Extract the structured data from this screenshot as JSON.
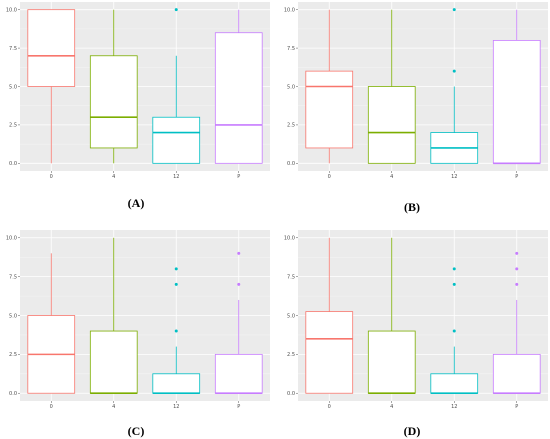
{
  "colors": {
    "panel_bg": "#ebebeb",
    "grid_major": "#ffffff",
    "grid_minor": "#f5f5f5",
    "box_fill": "#ffffff",
    "series": [
      "#f8766d",
      "#7cae00",
      "#00bfc4",
      "#c77cff"
    ]
  },
  "panel_labels": [
    "(A)",
    "(B)",
    "(C)",
    "(D)"
  ],
  "chart_data": [
    {
      "type": "box",
      "panel": "(A)",
      "categories": [
        "0",
        "4",
        "12",
        "P"
      ],
      "ylim": [
        -0.5,
        10.5
      ],
      "y_ticks": [
        "0.0",
        "2.5",
        "5.0",
        "7.5",
        "10.0"
      ],
      "y_tick_values": [
        0,
        2.5,
        5,
        7.5,
        10
      ],
      "boxes": [
        {
          "category": "0",
          "whisker_low": 0,
          "q1": 5,
          "median": 7,
          "q3": 10,
          "whisker_high": 10,
          "outliers": []
        },
        {
          "category": "4",
          "whisker_low": 0,
          "q1": 1,
          "median": 3,
          "q3": 7,
          "whisker_high": 10,
          "outliers": []
        },
        {
          "category": "12",
          "whisker_low": 0,
          "q1": 0,
          "median": 2,
          "q3": 3,
          "whisker_high": 7,
          "outliers": [
            10
          ]
        },
        {
          "category": "P",
          "whisker_low": 0,
          "q1": 0,
          "median": 2.5,
          "q3": 8.5,
          "whisker_high": 10,
          "outliers": []
        }
      ]
    },
    {
      "type": "box",
      "panel": "(B)",
      "categories": [
        "0",
        "4",
        "12",
        "P"
      ],
      "ylim": [
        -0.5,
        10.5
      ],
      "y_ticks": [
        "0.0",
        "2.5",
        "5.0",
        "7.5",
        "10.0"
      ],
      "y_tick_values": [
        0,
        2.5,
        5,
        7.5,
        10
      ],
      "boxes": [
        {
          "category": "0",
          "whisker_low": 0,
          "q1": 1,
          "median": 5,
          "q3": 6,
          "whisker_high": 10,
          "outliers": []
        },
        {
          "category": "4",
          "whisker_low": 0,
          "q1": 0,
          "median": 2,
          "q3": 5,
          "whisker_high": 10,
          "outliers": []
        },
        {
          "category": "12",
          "whisker_low": 0,
          "q1": 0,
          "median": 1,
          "q3": 2,
          "whisker_high": 5,
          "outliers": [
            6,
            10
          ]
        },
        {
          "category": "P",
          "whisker_low": 0,
          "q1": 0,
          "median": 0,
          "q3": 8,
          "whisker_high": 10,
          "outliers": []
        }
      ]
    },
    {
      "type": "box",
      "panel": "(C)",
      "categories": [
        "0",
        "4",
        "12",
        "P"
      ],
      "ylim": [
        -0.5,
        10.5
      ],
      "y_ticks": [
        "0.0",
        "2.5",
        "5.0",
        "7.5",
        "10.0"
      ],
      "y_tick_values": [
        0,
        2.5,
        5,
        7.5,
        10
      ],
      "boxes": [
        {
          "category": "0",
          "whisker_low": 0,
          "q1": 0,
          "median": 2.5,
          "q3": 5,
          "whisker_high": 9,
          "outliers": []
        },
        {
          "category": "4",
          "whisker_low": 0,
          "q1": 0,
          "median": 0,
          "q3": 4,
          "whisker_high": 10,
          "outliers": []
        },
        {
          "category": "12",
          "whisker_low": 0,
          "q1": 0,
          "median": 0,
          "q3": 1.25,
          "whisker_high": 3,
          "outliers": [
            4,
            7,
            8
          ]
        },
        {
          "category": "P",
          "whisker_low": 0,
          "q1": 0,
          "median": 0,
          "q3": 2.5,
          "whisker_high": 6,
          "outliers": [
            7,
            9
          ]
        }
      ]
    },
    {
      "type": "box",
      "panel": "(D)",
      "categories": [
        "0",
        "4",
        "12",
        "P"
      ],
      "ylim": [
        -0.5,
        10.5
      ],
      "y_ticks": [
        "0.0",
        "2.5",
        "5.0",
        "7.5",
        "10.0"
      ],
      "y_tick_values": [
        0,
        2.5,
        5,
        7.5,
        10
      ],
      "boxes": [
        {
          "category": "0",
          "whisker_low": 0,
          "q1": 0,
          "median": 3.5,
          "q3": 5.25,
          "whisker_high": 10,
          "outliers": []
        },
        {
          "category": "4",
          "whisker_low": 0,
          "q1": 0,
          "median": 0,
          "q3": 4,
          "whisker_high": 10,
          "outliers": []
        },
        {
          "category": "12",
          "whisker_low": 0,
          "q1": 0,
          "median": 0,
          "q3": 1.25,
          "whisker_high": 3,
          "outliers": [
            4,
            7,
            8
          ]
        },
        {
          "category": "P",
          "whisker_low": 0,
          "q1": 0,
          "median": 0,
          "q3": 2.5,
          "whisker_high": 6,
          "outliers": [
            7,
            8,
            9
          ]
        }
      ]
    }
  ]
}
